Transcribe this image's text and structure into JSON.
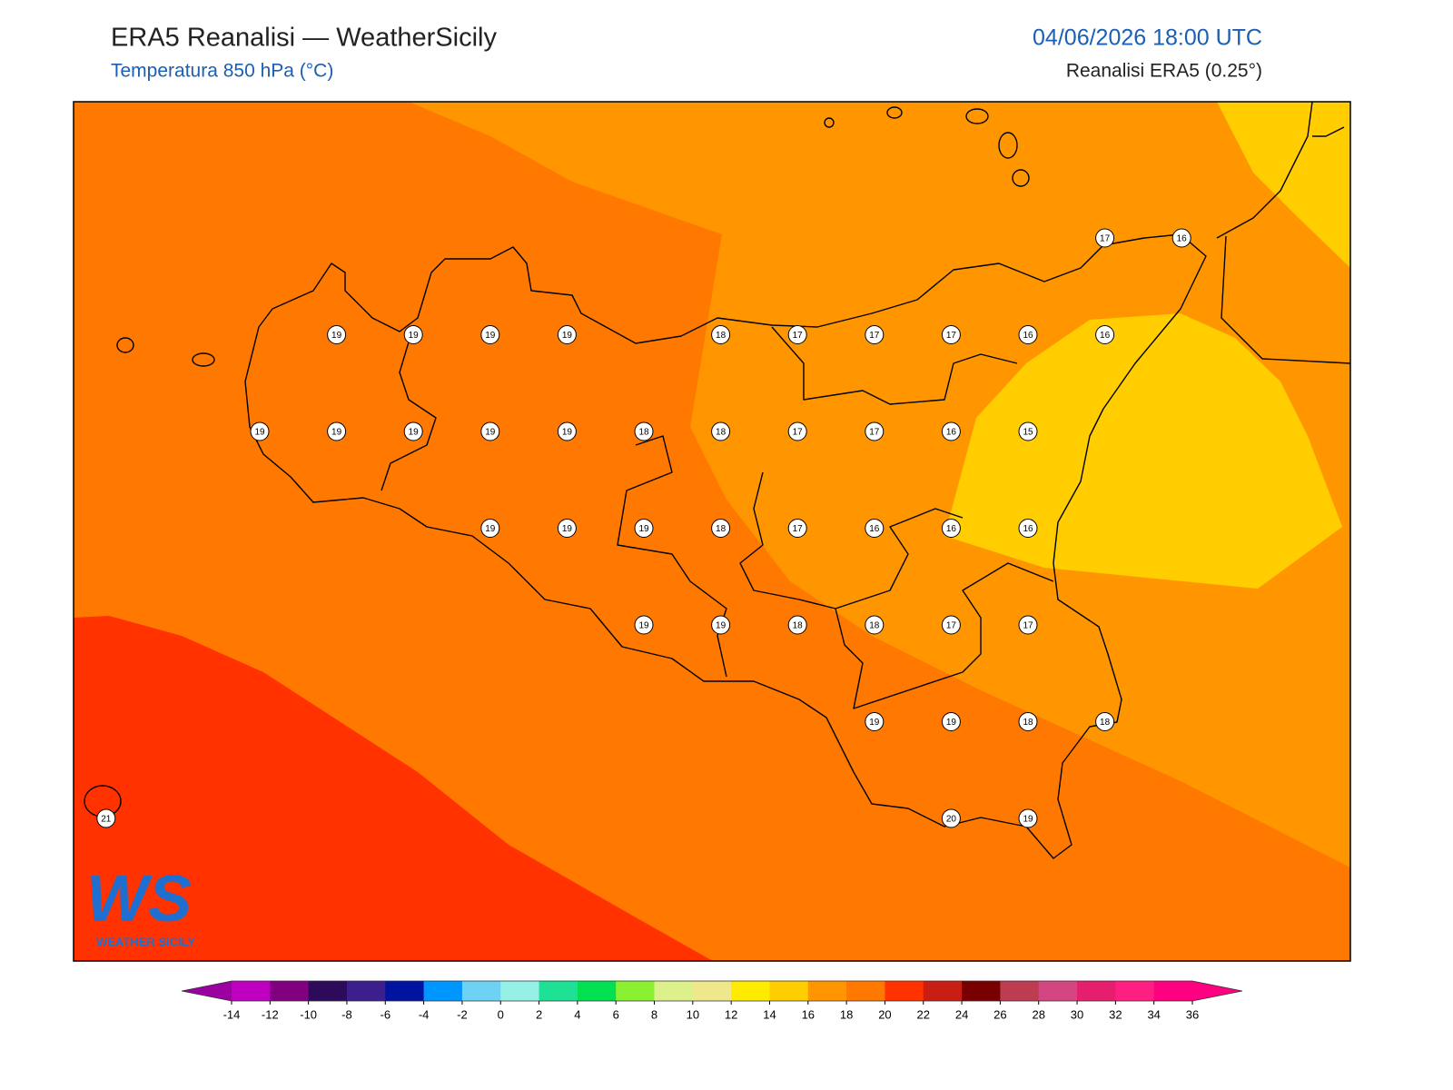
{
  "header": {
    "title": "ERA5 Reanalisi — WeatherSicily",
    "subtitle": "Temperatura 850 hPa (°C)",
    "datetime": "04/06/2026 18:00 UTC",
    "source": "Reanalisi ERA5 (0.25°)"
  },
  "map": {
    "stations": [
      "17",
      "16",
      "19",
      "19",
      "19",
      "19",
      "18",
      "17",
      "17",
      "17",
      "16",
      "16",
      "19",
      "19",
      "19",
      "19",
      "19",
      "18",
      "18",
      "17",
      "17",
      "16",
      "15",
      "19",
      "19",
      "19",
      "18",
      "17",
      "16",
      "16",
      "16",
      "19",
      "19",
      "18",
      "18",
      "17",
      "17",
      "19",
      "19",
      "18",
      "18",
      "20",
      "19",
      "21"
    ]
  },
  "colorbar": {
    "ticks": [
      -14,
      -12,
      -10,
      -8,
      -6,
      -4,
      -2,
      0,
      2,
      4,
      6,
      8,
      10,
      12,
      14,
      16,
      18,
      20,
      22,
      24,
      26,
      28,
      30,
      32,
      34,
      36
    ],
    "colors": [
      "#c000c0",
      "#800080",
      "#2d0a5a",
      "#3c1e8c",
      "#0014a0",
      "#0096ff",
      "#6ed2f5",
      "#96f0e6",
      "#1ee196",
      "#00e050",
      "#8cf032",
      "#dcf08c",
      "#f0e68c",
      "#ffeb00",
      "#ffcd00",
      "#ff9600",
      "#ff7800",
      "#ff3200",
      "#c81e14",
      "#780000",
      "#be3c50",
      "#d24682",
      "#e61e6e",
      "#ff1e82",
      "#ff0080"
    ],
    "extend_colors": [
      "#9b00a0",
      "#ff0080"
    ]
  },
  "logo": {
    "mark": "WS",
    "text": "WEATHER SICILY"
  }
}
